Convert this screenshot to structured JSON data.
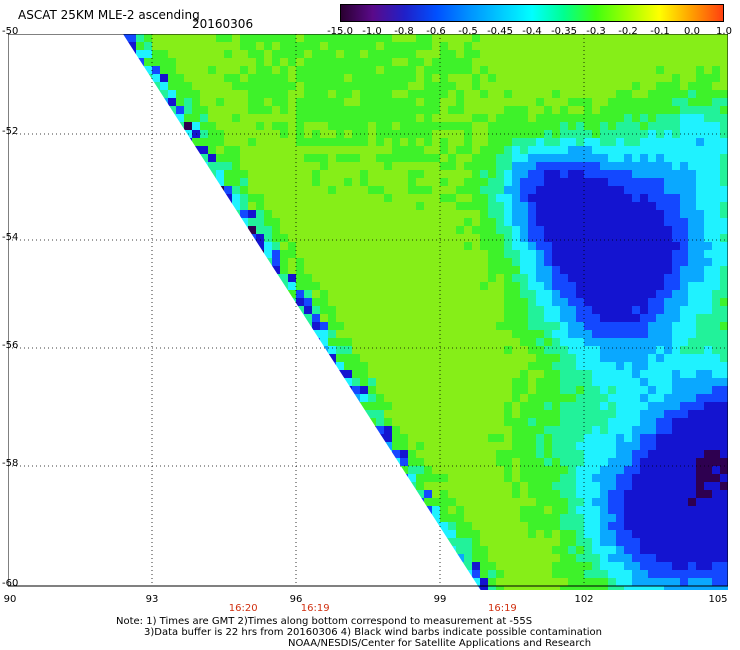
{
  "header": {
    "title": "ASCAT 25KM MLE-2 ascending",
    "date": "20160306"
  },
  "colorbar": {
    "labels": [
      "-15.0",
      "-1.0",
      "-0.8",
      "-0.6",
      "-0.5",
      "-0.45",
      "-0.4",
      "-0.35",
      "-0.3",
      "-0.2",
      "-0.1",
      "0.0",
      "1.0"
    ],
    "colors": [
      "#2a0030",
      "#5a0a8a",
      "#2020c8",
      "#0050ff",
      "#0090ff",
      "#00c8ff",
      "#00ffff",
      "#00ff90",
      "#40ff10",
      "#a0ff00",
      "#ffff00",
      "#ffa000",
      "#ff4010"
    ]
  },
  "map": {
    "lat_labels": [
      "-50",
      "-52",
      "-54",
      "-56",
      "-58",
      "-60"
    ],
    "lon_labels": [
      "90",
      "93",
      "96",
      "99",
      "102",
      "105"
    ],
    "pass_times": [
      {
        "label": "16:20",
        "lon": 94.9
      },
      {
        "label": "16:19",
        "lon": 96.4
      },
      {
        "label": "16:19",
        "lon": 100.3
      }
    ],
    "field_colors": {
      "yellowgreen": "#86ee18",
      "green": "#3ef22a",
      "spring": "#22f29a",
      "cyan": "#1ff2ff",
      "sky": "#0aa8ff",
      "blue": "#1448ff",
      "navy": "#1414d0",
      "purple": "#2e0050"
    }
  },
  "footer": {
    "line1": "Note: 1) Times are GMT 2)Times along bottom correspond to measurement at -55S",
    "line2": "3)Data buffer is 22 hrs from 20160306 4) Black wind barbs indicate possible contamination",
    "line3": "NOAA/NESDIS/Center for Satellite Applications and Research"
  }
}
